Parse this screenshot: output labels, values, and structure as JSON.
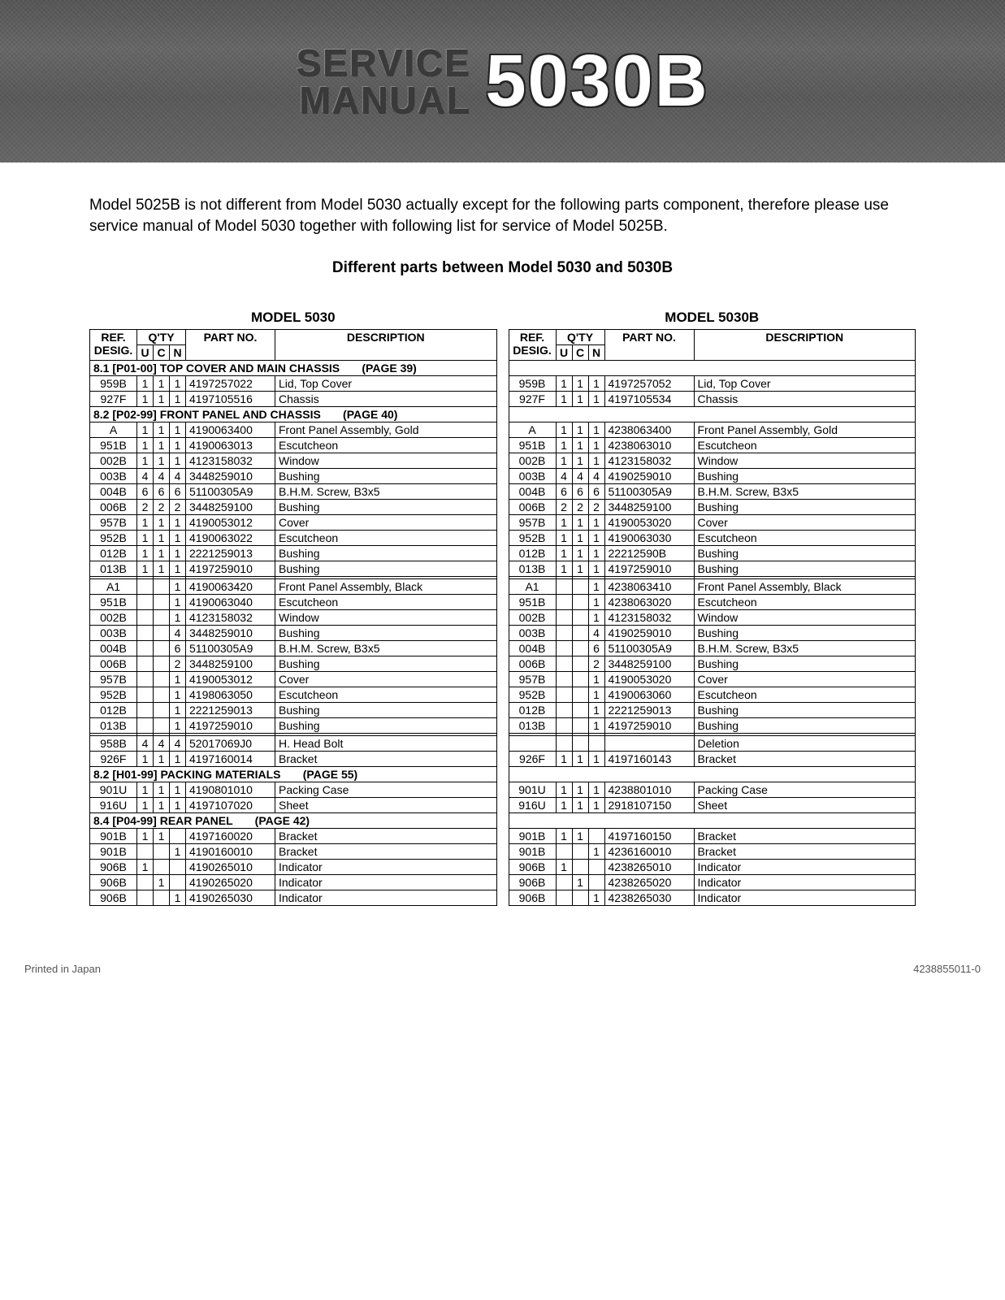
{
  "header": {
    "line1": "SERVICE",
    "line2": "MANUAL",
    "model": "5030B"
  },
  "intro": "Model 5025B is not different from Model 5030 actually except for the following parts component, therefore please use service manual of Model 5030 together with following list for service of Model 5025B.",
  "subtitle": "Different parts between Model 5030 and 5030B",
  "left_title": "MODEL 5030",
  "right_title": "MODEL 5030B",
  "col_headers": {
    "ref": "REF.\nDESIG.",
    "qty": "Q'TY",
    "u": "U",
    "c": "C",
    "n": "N",
    "pn": "PART NO.",
    "desc": "DESCRIPTION"
  },
  "sections": [
    {
      "title": "8.1 [P01-00]  TOP COVER AND MAIN CHASSIS",
      "page": "(PAGE 39)",
      "left": [
        {
          "ref": "959B",
          "u": "1",
          "c": "1",
          "n": "1",
          "pn": "4197257022",
          "desc": "Lid, Top Cover"
        },
        {
          "ref": "927F",
          "u": "1",
          "c": "1",
          "n": "1",
          "pn": "4197105516",
          "desc": "Chassis"
        }
      ],
      "right": [
        {
          "ref": "959B",
          "u": "1",
          "c": "1",
          "n": "1",
          "pn": "4197257052",
          "desc": "Lid, Top Cover"
        },
        {
          "ref": "927F",
          "u": "1",
          "c": "1",
          "n": "1",
          "pn": "4197105534",
          "desc": "Chassis"
        }
      ]
    },
    {
      "title": "8.2 [P02-99]  FRONT PANEL AND CHASSIS",
      "page": "(PAGE 40)",
      "left": [
        {
          "ref": "A",
          "u": "1",
          "c": "1",
          "n": "1",
          "pn": "4190063400",
          "desc": "Front Panel Assembly, Gold"
        },
        {
          "ref": "951B",
          "u": "1",
          "c": "1",
          "n": "1",
          "pn": "4190063013",
          "desc": "Escutcheon"
        },
        {
          "ref": "002B",
          "u": "1",
          "c": "1",
          "n": "1",
          "pn": "4123158032",
          "desc": "Window"
        },
        {
          "ref": "003B",
          "u": "4",
          "c": "4",
          "n": "4",
          "pn": "3448259010",
          "desc": "Bushing"
        },
        {
          "ref": "004B",
          "u": "6",
          "c": "6",
          "n": "6",
          "pn": "51100305A9",
          "desc": "B.H.M. Screw, B3x5"
        },
        {
          "ref": "006B",
          "u": "2",
          "c": "2",
          "n": "2",
          "pn": "3448259100",
          "desc": "Bushing"
        },
        {
          "ref": "957B",
          "u": "1",
          "c": "1",
          "n": "1",
          "pn": "4190053012",
          "desc": "Cover"
        },
        {
          "ref": "952B",
          "u": "1",
          "c": "1",
          "n": "1",
          "pn": "4190063022",
          "desc": "Escutcheon"
        },
        {
          "ref": "012B",
          "u": "1",
          "c": "1",
          "n": "1",
          "pn": "2221259013",
          "desc": "Bushing"
        },
        {
          "ref": "013B",
          "u": "1",
          "c": "1",
          "n": "1",
          "pn": "4197259010",
          "desc": "Bushing"
        },
        {
          "spacer": true
        },
        {
          "ref": "A1",
          "u": "",
          "c": "",
          "n": "1",
          "pn": "4190063420",
          "desc": "Front Panel Assembly, Black"
        },
        {
          "ref": "951B",
          "u": "",
          "c": "",
          "n": "1",
          "pn": "4190063040",
          "desc": "Escutcheon"
        },
        {
          "ref": "002B",
          "u": "",
          "c": "",
          "n": "1",
          "pn": "4123158032",
          "desc": "Window"
        },
        {
          "ref": "003B",
          "u": "",
          "c": "",
          "n": "4",
          "pn": "3448259010",
          "desc": "Bushing"
        },
        {
          "ref": "004B",
          "u": "",
          "c": "",
          "n": "6",
          "pn": "51100305A9",
          "desc": "B.H.M. Screw, B3x5"
        },
        {
          "ref": "006B",
          "u": "",
          "c": "",
          "n": "2",
          "pn": "3448259100",
          "desc": "Bushing"
        },
        {
          "ref": "957B",
          "u": "",
          "c": "",
          "n": "1",
          "pn": "4190053012",
          "desc": "Cover"
        },
        {
          "ref": "952B",
          "u": "",
          "c": "",
          "n": "1",
          "pn": "4198063050",
          "desc": "Escutcheon"
        },
        {
          "ref": "012B",
          "u": "",
          "c": "",
          "n": "1",
          "pn": "2221259013",
          "desc": "Bushing"
        },
        {
          "ref": "013B",
          "u": "",
          "c": "",
          "n": "1",
          "pn": "4197259010",
          "desc": "Bushing"
        },
        {
          "spacer": true
        },
        {
          "ref": "958B",
          "u": "4",
          "c": "4",
          "n": "4",
          "pn": "52017069J0",
          "desc": "H. Head Bolt"
        },
        {
          "ref": "926F",
          "u": "1",
          "c": "1",
          "n": "1",
          "pn": "4197160014",
          "desc": "Bracket"
        }
      ],
      "right": [
        {
          "ref": "A",
          "u": "1",
          "c": "1",
          "n": "1",
          "pn": "4238063400",
          "desc": "Front Panel Assembly, Gold"
        },
        {
          "ref": "951B",
          "u": "1",
          "c": "1",
          "n": "1",
          "pn": "4238063010",
          "desc": "Escutcheon"
        },
        {
          "ref": "002B",
          "u": "1",
          "c": "1",
          "n": "1",
          "pn": "4123158032",
          "desc": "Window"
        },
        {
          "ref": "003B",
          "u": "4",
          "c": "4",
          "n": "4",
          "pn": "4190259010",
          "desc": "Bushing"
        },
        {
          "ref": "004B",
          "u": "6",
          "c": "6",
          "n": "6",
          "pn": "51100305A9",
          "desc": "B.H.M. Screw, B3x5"
        },
        {
          "ref": "006B",
          "u": "2",
          "c": "2",
          "n": "2",
          "pn": "3448259100",
          "desc": "Bushing"
        },
        {
          "ref": "957B",
          "u": "1",
          "c": "1",
          "n": "1",
          "pn": "4190053020",
          "desc": "Cover"
        },
        {
          "ref": "952B",
          "u": "1",
          "c": "1",
          "n": "1",
          "pn": "4190063030",
          "desc": "Escutcheon"
        },
        {
          "ref": "012B",
          "u": "1",
          "c": "1",
          "n": "1",
          "pn": "22212590B",
          "desc": "Bushing"
        },
        {
          "ref": "013B",
          "u": "1",
          "c": "1",
          "n": "1",
          "pn": "4197259010",
          "desc": "Bushing"
        },
        {
          "spacer": true
        },
        {
          "ref": "A1",
          "u": "",
          "c": "",
          "n": "1",
          "pn": "4238063410",
          "desc": "Front Panel Assembly, Black"
        },
        {
          "ref": "951B",
          "u": "",
          "c": "",
          "n": "1",
          "pn": "4238063020",
          "desc": "Escutcheon"
        },
        {
          "ref": "002B",
          "u": "",
          "c": "",
          "n": "1",
          "pn": "4123158032",
          "desc": "Window"
        },
        {
          "ref": "003B",
          "u": "",
          "c": "",
          "n": "4",
          "pn": "4190259010",
          "desc": "Bushing"
        },
        {
          "ref": "004B",
          "u": "",
          "c": "",
          "n": "6",
          "pn": "51100305A9",
          "desc": "B.H.M. Screw, B3x5"
        },
        {
          "ref": "006B",
          "u": "",
          "c": "",
          "n": "2",
          "pn": "3448259100",
          "desc": "Bushing"
        },
        {
          "ref": "957B",
          "u": "",
          "c": "",
          "n": "1",
          "pn": "4190053020",
          "desc": "Cover"
        },
        {
          "ref": "952B",
          "u": "",
          "c": "",
          "n": "1",
          "pn": "4190063060",
          "desc": "Escutcheon"
        },
        {
          "ref": "012B",
          "u": "",
          "c": "",
          "n": "1",
          "pn": "2221259013",
          "desc": "Bushing"
        },
        {
          "ref": "013B",
          "u": "",
          "c": "",
          "n": "1",
          "pn": "4197259010",
          "desc": "Bushing"
        },
        {
          "spacer": true
        },
        {
          "ref": "",
          "u": "",
          "c": "",
          "n": "",
          "pn": "",
          "desc": "Deletion"
        },
        {
          "ref": "926F",
          "u": "1",
          "c": "1",
          "n": "1",
          "pn": "4197160143",
          "desc": "Bracket"
        }
      ]
    },
    {
      "title": "8.2 [H01-99]  PACKING MATERIALS",
      "page": "(PAGE 55)",
      "left": [
        {
          "ref": "901U",
          "u": "1",
          "c": "1",
          "n": "1",
          "pn": "4190801010",
          "desc": "Packing Case"
        },
        {
          "ref": "916U",
          "u": "1",
          "c": "1",
          "n": "1",
          "pn": "4197107020",
          "desc": "Sheet"
        }
      ],
      "right": [
        {
          "ref": "901U",
          "u": "1",
          "c": "1",
          "n": "1",
          "pn": "4238801010",
          "desc": "Packing Case"
        },
        {
          "ref": "916U",
          "u": "1",
          "c": "1",
          "n": "1",
          "pn": "2918107150",
          "desc": "Sheet"
        }
      ]
    },
    {
      "title": "8.4 [P04-99]  REAR PANEL",
      "page": "(PAGE 42)",
      "left": [
        {
          "ref": "901B",
          "u": "1",
          "c": "1",
          "n": "",
          "pn": "4197160020",
          "desc": "Bracket"
        },
        {
          "ref": "901B",
          "u": "",
          "c": "",
          "n": "1",
          "pn": "4190160010",
          "desc": "Bracket"
        },
        {
          "ref": "906B",
          "u": "1",
          "c": "",
          "n": "",
          "pn": "4190265010",
          "desc": "Indicator"
        },
        {
          "ref": "906B",
          "u": "",
          "c": "1",
          "n": "",
          "pn": "4190265020",
          "desc": "Indicator"
        },
        {
          "ref": "906B",
          "u": "",
          "c": "",
          "n": "1",
          "pn": "4190265030",
          "desc": "Indicator"
        }
      ],
      "right": [
        {
          "ref": "901B",
          "u": "1",
          "c": "1",
          "n": "",
          "pn": "4197160150",
          "desc": "Bracket"
        },
        {
          "ref": "901B",
          "u": "",
          "c": "",
          "n": "1",
          "pn": "4236160010",
          "desc": "Bracket"
        },
        {
          "ref": "906B",
          "u": "1",
          "c": "",
          "n": "",
          "pn": "4238265010",
          "desc": "Indicator"
        },
        {
          "ref": "906B",
          "u": "",
          "c": "1",
          "n": "",
          "pn": "4238265020",
          "desc": "Indicator"
        },
        {
          "ref": "906B",
          "u": "",
          "c": "",
          "n": "1",
          "pn": "4238265030",
          "desc": "Indicator"
        }
      ]
    }
  ],
  "footer": {
    "left": "Printed in Japan",
    "right": "4238855011-0"
  }
}
